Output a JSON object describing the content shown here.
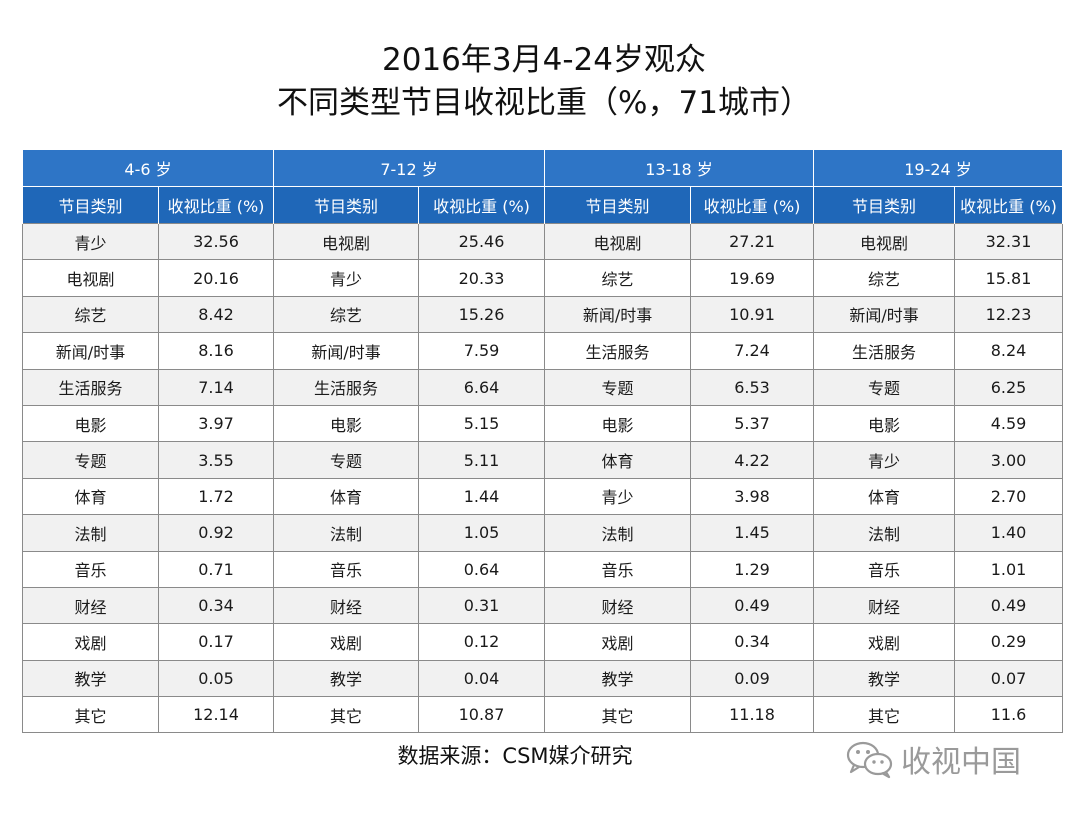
{
  "title": {
    "line1": "2016年3月4-24岁观众",
    "line2": "不同类型节目收视比重（%，71城市）"
  },
  "table": {
    "groups": [
      "4-6 岁",
      "7-12 岁",
      "13-18 岁",
      "19-24 岁"
    ],
    "columns": [
      "节目类别",
      "收视比重 (%)",
      "节目类别",
      "收视比重 (%)",
      "节目类别",
      "收视比重 (%)",
      "节目类别",
      "收视比重 (%)"
    ],
    "rows": [
      [
        "青少",
        "32.56",
        "电视剧",
        "25.46",
        "电视剧",
        "27.21",
        "电视剧",
        "32.31"
      ],
      [
        "电视剧",
        "20.16",
        "青少",
        "20.33",
        "综艺",
        "19.69",
        "综艺",
        "15.81"
      ],
      [
        "综艺",
        "8.42",
        "综艺",
        "15.26",
        "新闻/时事",
        "10.91",
        "新闻/时事",
        "12.23"
      ],
      [
        "新闻/时事",
        "8.16",
        "新闻/时事",
        "7.59",
        "生活服务",
        "7.24",
        "生活服务",
        "8.24"
      ],
      [
        "生活服务",
        "7.14",
        "生活服务",
        "6.64",
        "专题",
        "6.53",
        "专题",
        "6.25"
      ],
      [
        "电影",
        "3.97",
        "电影",
        "5.15",
        "电影",
        "5.37",
        "电影",
        "4.59"
      ],
      [
        "专题",
        "3.55",
        "专题",
        "5.11",
        "体育",
        "4.22",
        "青少",
        "3.00"
      ],
      [
        "体育",
        "1.72",
        "体育",
        "1.44",
        "青少",
        "3.98",
        "体育",
        "2.70"
      ],
      [
        "法制",
        "0.92",
        "法制",
        "1.05",
        "法制",
        "1.45",
        "法制",
        "1.40"
      ],
      [
        "音乐",
        "0.71",
        "音乐",
        "0.64",
        "音乐",
        "1.29",
        "音乐",
        "1.01"
      ],
      [
        "财经",
        "0.34",
        "财经",
        "0.31",
        "财经",
        "0.49",
        "财经",
        "0.49"
      ],
      [
        "戏剧",
        "0.17",
        "戏剧",
        "0.12",
        "戏剧",
        "0.34",
        "戏剧",
        "0.29"
      ],
      [
        "教学",
        "0.05",
        "教学",
        "0.04",
        "教学",
        "0.09",
        "教学",
        "0.07"
      ],
      [
        "其它",
        "12.14",
        "其它",
        "10.87",
        "其它",
        "11.18",
        "其它",
        "11.6"
      ]
    ]
  },
  "source": "数据来源：CSM媒介研究",
  "watermark": {
    "icon": "wechat-icon",
    "text": "收视中国"
  },
  "colors": {
    "header_group_bg": "#2e75c6",
    "header_cols_bg": "#1f67b8",
    "row_alt_bg": "#f1f1f1"
  }
}
